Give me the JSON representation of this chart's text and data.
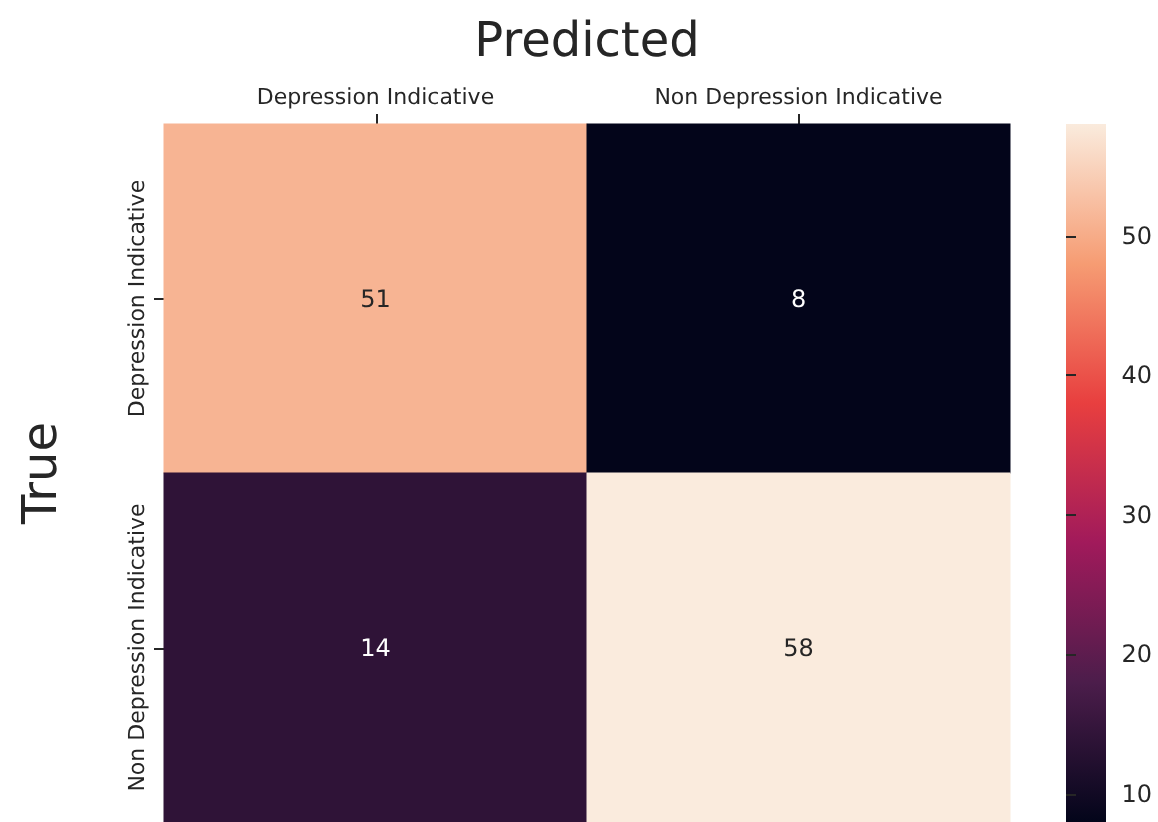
{
  "chart_data": {
    "type": "heatmap",
    "xlabel": "Predicted",
    "ylabel": "True",
    "categories": [
      "Depression Indicative",
      "Non Depression Indicative"
    ],
    "y_categories": [
      "Depression Indicative",
      "Non Depression Indicative"
    ],
    "cells": [
      [
        51,
        8
      ],
      [
        14,
        58
      ]
    ],
    "clim": [
      8,
      58
    ],
    "cticks": [
      10,
      20,
      30,
      40,
      50
    ],
    "data_labels": true
  }
}
